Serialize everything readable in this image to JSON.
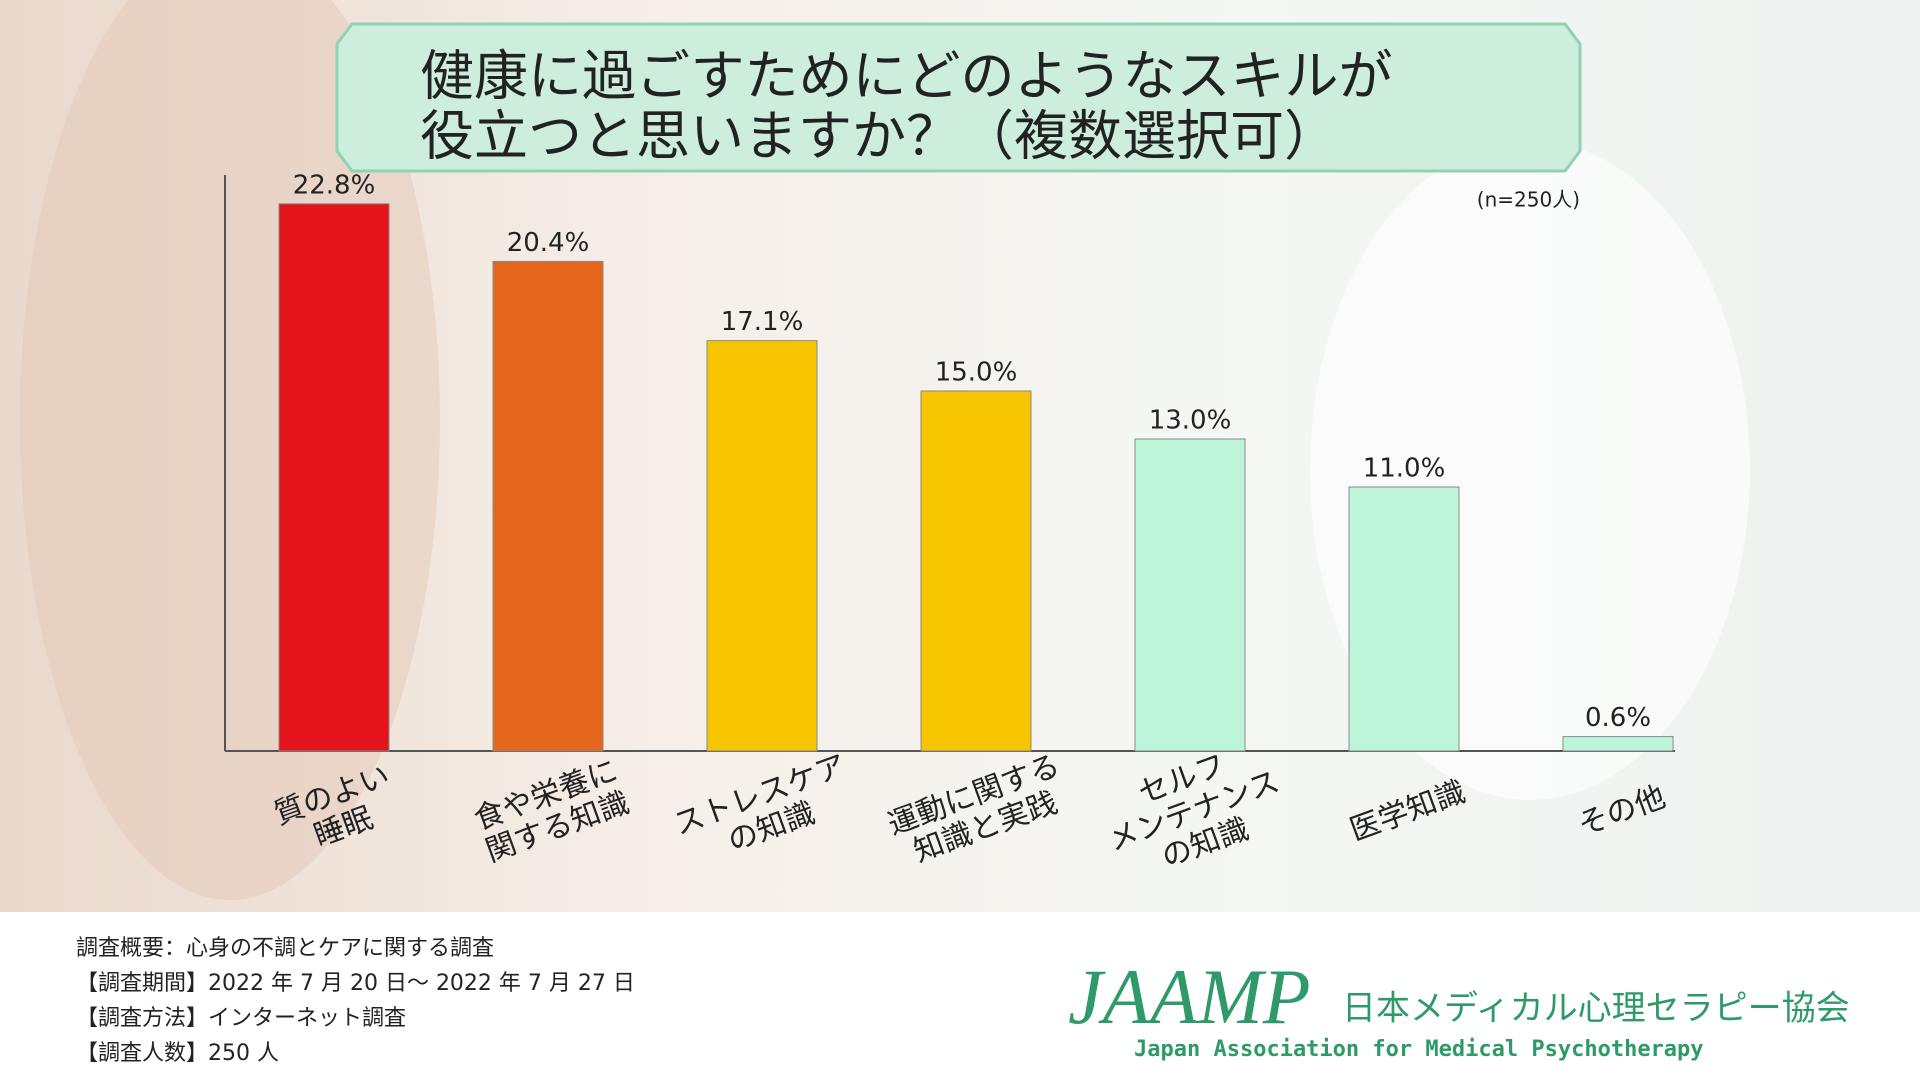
{
  "chart_data": {
    "type": "bar",
    "title_lines": [
      "健康に過ごすためにどのようなスキルが",
      "役立つと思いますか？（複数選択可）"
    ],
    "note": "(n=250人)",
    "categories": [
      [
        "質のよい",
        "睡眠"
      ],
      [
        "食や栄養に",
        "関する知識"
      ],
      [
        "ストレスケア",
        "の知識"
      ],
      [
        "運動に関する",
        "知識と実践"
      ],
      [
        "セルフ",
        "メンテナンス",
        "の知識"
      ],
      [
        "医学知識"
      ],
      [
        "その他"
      ]
    ],
    "values": [
      22.8,
      20.4,
      17.1,
      15.0,
      13.0,
      11.0,
      0.6
    ],
    "value_labels": [
      "22.8%",
      "20.4%",
      "17.1%",
      "15.0%",
      "13.0%",
      "11.0%",
      "0.6%"
    ],
    "colors": [
      "#e3141b",
      "#e4661c",
      "#f7c400",
      "#f7c400",
      "#bdf5da",
      "#bdf5da",
      "#bdf5da"
    ],
    "ylim": [
      0,
      24
    ]
  },
  "footer": {
    "lines": [
      "調査概要：心身の不調とケアに関する調査",
      "【調査期間】2022 年 7 月 20 日～ 2022 年 7 月 27 日",
      "【調査方法】インターネット調査",
      "【調査人数】250 人"
    ]
  },
  "logo": {
    "mark": "JAAMP",
    "name_ja": "日本メディカル心理セラピー協会",
    "name_en": "Japan Association for Medical Psychotherapy"
  }
}
